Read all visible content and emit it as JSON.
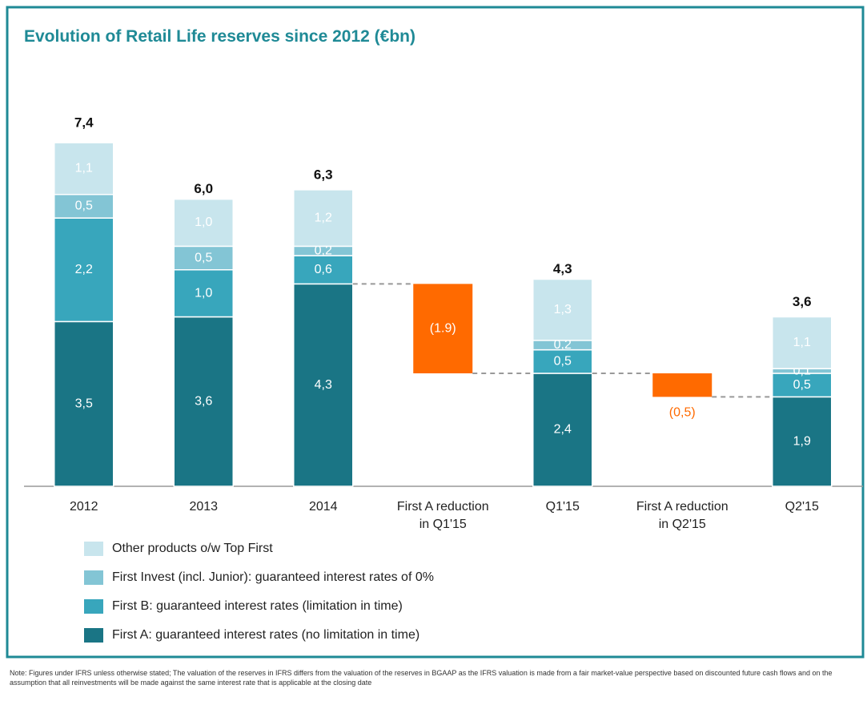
{
  "chart_data": {
    "type": "stacked-waterfall",
    "title": "Evolution of Retail Life reserves since 2012 (€bn)",
    "categories": [
      "2012",
      "2013",
      "2014",
      "First A reduction in Q1'15",
      "Q1'15",
      "First A reduction in Q2'15",
      "Q2'15"
    ],
    "series": [
      {
        "name": "First A: guaranteed interest rates (no limitation in time)",
        "color": "#1a7585",
        "values": [
          3.5,
          3.6,
          4.3,
          null,
          2.4,
          null,
          1.9
        ],
        "value_labels": [
          "3,5",
          "3,6",
          "4,3",
          null,
          "2,4",
          null,
          "1,9"
        ]
      },
      {
        "name": "First B: guaranteed interest rates (limitation in time)",
        "color": "#38a6bc",
        "values": [
          2.2,
          1.0,
          0.6,
          null,
          0.5,
          null,
          0.5
        ],
        "value_labels": [
          "2,2",
          "1,0",
          "0,6",
          null,
          "0,5",
          null,
          "0,5"
        ]
      },
      {
        "name": "First Invest (incl. Junior): guaranteed interest rates of 0%",
        "color": "#83c5d5",
        "values": [
          0.5,
          0.5,
          0.2,
          null,
          0.2,
          null,
          0.1
        ],
        "value_labels": [
          "0,5",
          "0,5",
          "0,2",
          null,
          "0,2",
          null,
          "0,1"
        ]
      },
      {
        "name": "Other products o/w Top First",
        "color": "#c8e5ed",
        "values": [
          1.1,
          1.0,
          1.2,
          null,
          1.3,
          null,
          1.1
        ],
        "value_labels": [
          "1,1",
          "1,0",
          "1,2",
          null,
          "1,3",
          null,
          "1,1"
        ]
      }
    ],
    "totals": {
      "values": [
        7.4,
        6.0,
        6.3,
        null,
        4.3,
        null,
        3.6
      ],
      "value_labels": [
        "7,4",
        "6,0",
        "6,3",
        null,
        "4,3",
        null,
        "3,6"
      ]
    },
    "reductions": {
      "color": "#ff6a00",
      "values": [
        null,
        null,
        null,
        -1.9,
        null,
        -0.5,
        null
      ],
      "value_labels": [
        null,
        null,
        null,
        "(1.9)",
        null,
        "(0,5)",
        null
      ]
    },
    "ylim": [
      0,
      8
    ],
    "note": "Note: Figures under IFRS unless otherwise stated; The valuation of the reserves in IFRS differs from the valuation of the reserves in BGAAP as the IFRS valuation is made from a fair market-value perspective based on discounted future cash flows and on the assumption that all reinvestments will be made against the same interest rate that is applicable at the closing date"
  }
}
